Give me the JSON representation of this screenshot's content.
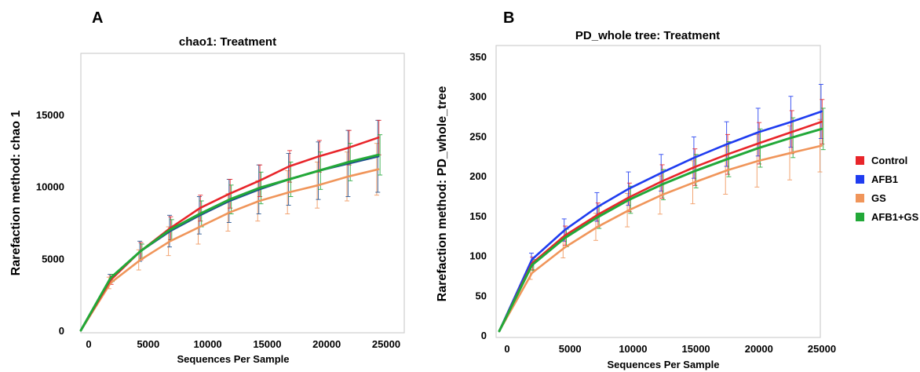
{
  "chart_data": [
    {
      "panel": "A",
      "type": "line",
      "title": "chao1: Treatment",
      "xlabel": "Sequences Per Sample",
      "ylabel": "Rarefaction method: chao 1",
      "xlim": [
        0,
        25000
      ],
      "ylim": [
        0,
        18000
      ],
      "xticks": [
        0,
        5000,
        10000,
        15000,
        20000,
        25000
      ],
      "yticks": [
        0,
        5000,
        10000,
        15000
      ],
      "x": [
        0,
        2500,
        5000,
        7500,
        10000,
        12500,
        15000,
        17500,
        20000,
        22500,
        25000
      ],
      "series": [
        {
          "name": "Control",
          "values": [
            0,
            3500,
            5500,
            7100,
            8500,
            9500,
            10400,
            11400,
            12100,
            12700,
            13400
          ],
          "err": [
            0,
            300,
            600,
            800,
            900,
            1000,
            1100,
            1100,
            1100,
            1200,
            1200
          ]
        },
        {
          "name": "AFB1",
          "values": [
            0,
            3600,
            5500,
            6900,
            8000,
            9000,
            9800,
            10500,
            11100,
            11600,
            12100
          ],
          "err": [
            0,
            300,
            700,
            1100,
            1300,
            1500,
            1700,
            1800,
            2000,
            2300,
            2500
          ]
        },
        {
          "name": "GS",
          "values": [
            0,
            3300,
            4900,
            6200,
            7200,
            8200,
            9000,
            9600,
            10100,
            10700,
            11200
          ],
          "err": [
            0,
            400,
            700,
            1000,
            1200,
            1300,
            1400,
            1500,
            1600,
            1700,
            1800
          ]
        },
        {
          "name": "AFB1+GS",
          "values": [
            0,
            3650,
            5500,
            7000,
            8100,
            9100,
            9900,
            10500,
            11100,
            11700,
            12200
          ],
          "err": [
            0,
            250,
            500,
            700,
            900,
            1000,
            1100,
            1200,
            1300,
            1300,
            1400
          ]
        }
      ]
    },
    {
      "panel": "B",
      "type": "line",
      "title": "PD_whole tree: Treatment",
      "xlabel": "Sequences Per Sample",
      "ylabel": "Rarefaction method: PD_whole_tree",
      "xlim": [
        0,
        25000
      ],
      "ylim": [
        0,
        350
      ],
      "xticks": [
        0,
        5000,
        10000,
        15000,
        20000,
        25000
      ],
      "yticks": [
        0,
        50,
        100,
        150,
        200,
        250,
        300,
        350
      ],
      "x": [
        0,
        2600,
        5200,
        7800,
        10300,
        12900,
        15500,
        18100,
        20600,
        23200,
        25600
      ],
      "series": [
        {
          "name": "Control",
          "values": [
            5,
            90,
            125,
            151,
            173,
            193,
            211,
            227,
            241,
            255,
            268
          ],
          "err": [
            0,
            8,
            12,
            15,
            18,
            21,
            23,
            25,
            26,
            27,
            28
          ]
        },
        {
          "name": "AFB1",
          "values": [
            5,
            95,
            132,
            161,
            184,
            204,
            223,
            240,
            255,
            268,
            281
          ],
          "err": [
            0,
            8,
            14,
            18,
            21,
            23,
            26,
            28,
            30,
            32,
            34
          ]
        },
        {
          "name": "GS",
          "values": [
            5,
            78,
            110,
            136,
            157,
            176,
            192,
            207,
            219,
            229,
            238
          ],
          "err": [
            0,
            8,
            13,
            17,
            21,
            24,
            27,
            30,
            33,
            34,
            33
          ]
        },
        {
          "name": "AFB1+GS",
          "values": [
            5,
            88,
            122,
            148,
            170,
            189,
            206,
            221,
            235,
            248,
            259
          ],
          "err": [
            0,
            7,
            11,
            14,
            17,
            19,
            21,
            22,
            24,
            25,
            26
          ]
        }
      ]
    }
  ],
  "legend": [
    {
      "label": "Control",
      "color": "#e8252a"
    },
    {
      "label": "AFB1",
      "color": "#1f3cf0"
    },
    {
      "label": "GS",
      "color": "#f0955a"
    },
    {
      "label": "AFB1+GS",
      "color": "#22a838"
    }
  ],
  "colors": {
    "Control": "#e8252a",
    "AFB1": "#1f3cf0",
    "GS": "#f0955a",
    "AFB1+GS": "#22a838",
    "AFB1_panelA": "#1f4f8f"
  }
}
